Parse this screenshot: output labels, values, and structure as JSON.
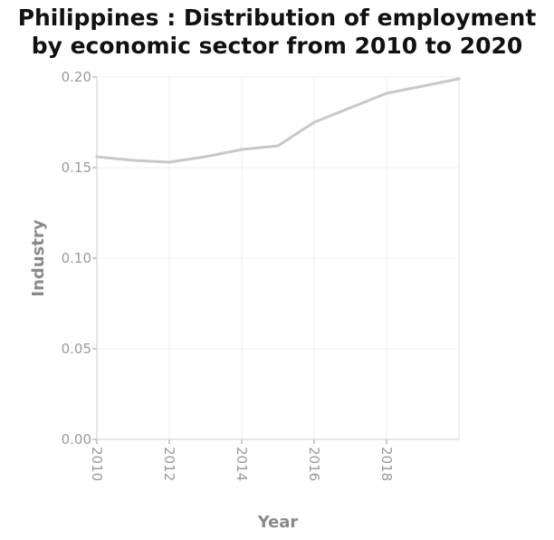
{
  "chart_data": {
    "type": "line",
    "title_line1": "Philippines : Distribution of employment",
    "title_line2": "by economic sector from 2010 to 2020",
    "xlabel": "Year",
    "ylabel": "Industry",
    "xlim": [
      2010,
      2020
    ],
    "ylim": [
      0,
      0.2
    ],
    "x_ticks": [
      "2010",
      "2012",
      "2014",
      "2016",
      "2018"
    ],
    "y_ticks": [
      "0.00",
      "0.05",
      "0.10",
      "0.15",
      "0.20"
    ],
    "grid": true,
    "line_color": "#c8c8c8",
    "series": [
      {
        "x": [
          2010,
          2011,
          2012,
          2013,
          2014,
          2015,
          2016,
          2017,
          2018,
          2019,
          2020
        ],
        "values": [
          0.156,
          0.154,
          0.153,
          0.156,
          0.16,
          0.162,
          0.175,
          0.183,
          0.191,
          0.195,
          0.199
        ]
      }
    ]
  }
}
